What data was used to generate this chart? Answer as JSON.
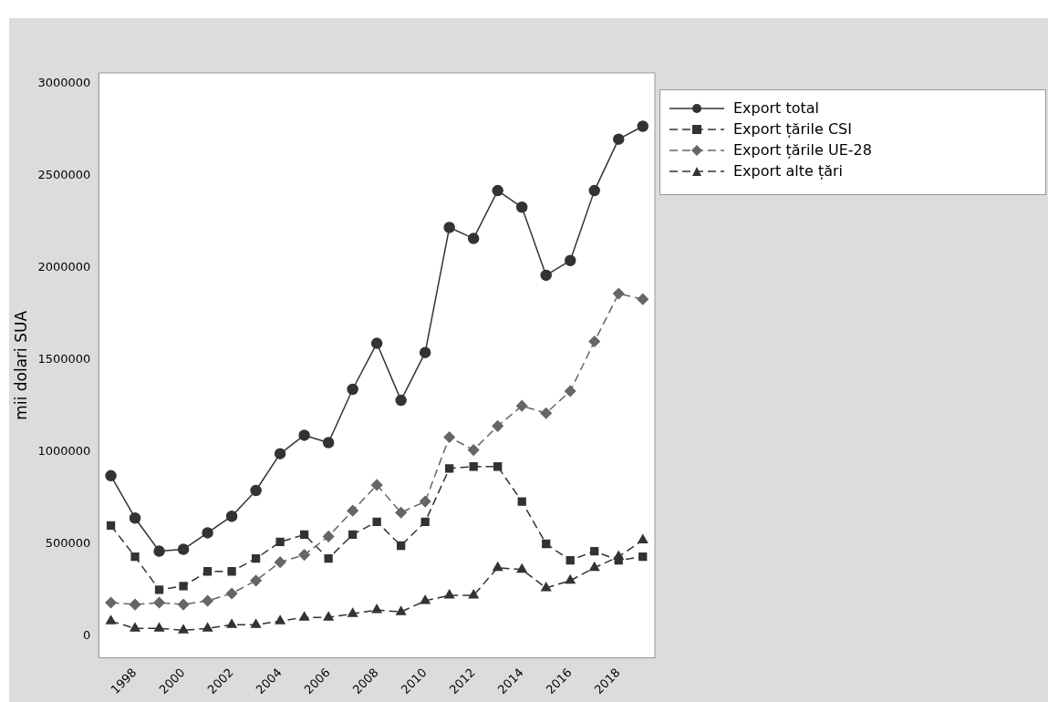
{
  "chart_data": {
    "type": "line",
    "ylabel": "mii dolari SUA",
    "categories": [
      null,
      "1998",
      null,
      "2000",
      null,
      "2002",
      null,
      "2004",
      null,
      "2006",
      null,
      "2008",
      null,
      "2010",
      null,
      "2012",
      null,
      "2014",
      null,
      "2016",
      null,
      "2018",
      null
    ],
    "series": [
      {
        "name": "Export total",
        "color": "#333333",
        "marker": "circle",
        "line_style": "solid",
        "values": [
          870000,
          640000,
          460000,
          470000,
          560000,
          650000,
          790000,
          990000,
          1090000,
          1050000,
          1340000,
          1590000,
          1280000,
          1540000,
          2220000,
          2160000,
          2420000,
          2330000,
          1960000,
          2040000,
          2420000,
          2700000,
          2770000
        ]
      },
      {
        "name": "Export țările CSI",
        "color": "#333333",
        "marker": "square",
        "line_style": "dashed",
        "values": [
          600000,
          430000,
          250000,
          270000,
          350000,
          350000,
          420000,
          510000,
          550000,
          420000,
          550000,
          620000,
          490000,
          620000,
          910000,
          920000,
          920000,
          730000,
          500000,
          410000,
          460000,
          410000,
          430000
        ]
      },
      {
        "name": "Export țările UE-28",
        "color": "#666666",
        "marker": "diamond",
        "line_style": "dashed",
        "values": [
          180000,
          170000,
          180000,
          170000,
          190000,
          230000,
          300000,
          400000,
          440000,
          540000,
          680000,
          820000,
          670000,
          730000,
          1080000,
          1010000,
          1140000,
          1250000,
          1210000,
          1330000,
          1600000,
          1860000,
          1830000
        ]
      },
      {
        "name": "Export alte țări",
        "color": "#333333",
        "marker": "triangle",
        "line_style": "dashed",
        "values": [
          80000,
          40000,
          40000,
          30000,
          40000,
          60000,
          60000,
          80000,
          100000,
          100000,
          120000,
          140000,
          130000,
          190000,
          220000,
          220000,
          370000,
          360000,
          260000,
          300000,
          370000,
          430000,
          520000
        ]
      }
    ],
    "ylim": [
      -120000,
      3060000
    ],
    "yticks": [
      0,
      500000,
      1000000,
      1500000,
      2000000,
      2500000,
      3000000
    ],
    "grid": false,
    "legend": "right"
  }
}
